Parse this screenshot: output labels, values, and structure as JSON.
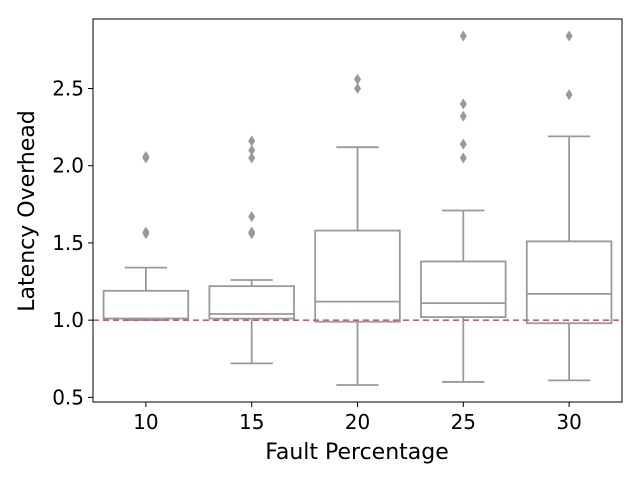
{
  "chart_data": {
    "type": "box",
    "xlabel": "Fault Percentage",
    "ylabel": "Latency Overhead",
    "categories": [
      "10",
      "15",
      "20",
      "25",
      "30"
    ],
    "ylim": [
      0.47,
      2.95
    ],
    "yticks": [
      0.5,
      1.0,
      1.5,
      2.0,
      2.5
    ],
    "ytick_labels": [
      "0.5",
      "1.0",
      "1.5",
      "2.0",
      "2.5"
    ],
    "boxes": [
      {
        "category": "10",
        "whisker_low": 1.0,
        "q1": 1.01,
        "median": 1.01,
        "q3": 1.19,
        "whisker_high": 1.34,
        "outliers": [
          1.56,
          1.57,
          2.05,
          2.06
        ]
      },
      {
        "category": "15",
        "whisker_low": 0.72,
        "q1": 1.01,
        "median": 1.04,
        "q3": 1.22,
        "whisker_high": 1.26,
        "outliers": [
          1.56,
          1.57,
          1.67,
          2.05,
          2.1,
          2.16
        ]
      },
      {
        "category": "20",
        "whisker_low": 0.58,
        "q1": 0.99,
        "median": 1.12,
        "q3": 1.58,
        "whisker_high": 2.12,
        "outliers": [
          2.5,
          2.56
        ]
      },
      {
        "category": "25",
        "whisker_low": 0.6,
        "q1": 1.02,
        "median": 1.11,
        "q3": 1.38,
        "whisker_high": 1.71,
        "outliers": [
          2.05,
          2.14,
          2.32,
          2.4,
          2.84
        ]
      },
      {
        "category": "30",
        "whisker_low": 0.61,
        "q1": 0.98,
        "median": 1.17,
        "q3": 1.51,
        "whisker_high": 2.19,
        "outliers": [
          2.46,
          2.84
        ]
      }
    ],
    "reference_line": {
      "y": 1.0,
      "style": "dashed",
      "color": "#e15759"
    },
    "box_color": "#999999",
    "grid": false,
    "legend": "none"
  }
}
